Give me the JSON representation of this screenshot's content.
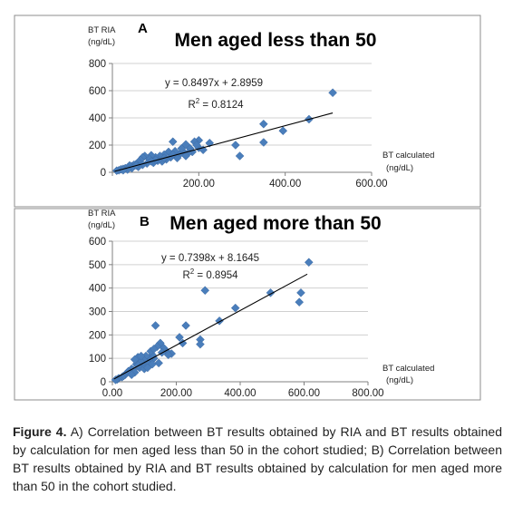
{
  "chart_data": [
    {
      "type": "scatter",
      "panel_letter": "A",
      "title": "Men aged less than 50",
      "ylabel_lines": [
        "BT RIA",
        "(ng/dL)"
      ],
      "xlabel_lines": [
        "BT calculated",
        "(ng/dL)"
      ],
      "xlim": [
        0,
        600
      ],
      "ylim": [
        0,
        800
      ],
      "xticks": [
        0,
        200,
        400,
        600
      ],
      "yticks": [
        0,
        200,
        400,
        600,
        800
      ],
      "xtick_labels": [
        "200.00",
        "400.00",
        "600.00"
      ],
      "ytick_labels": [
        "0",
        "200",
        "400",
        "600",
        "800"
      ],
      "grid": "horizontal",
      "marker_color": "#4a7ebb",
      "trendline": {
        "slope": 0.8497,
        "intercept": 2.8959,
        "x_range": [
          5,
          510
        ]
      },
      "equation": "y = 0.8497x + 2.8959",
      "r2_prefix": "R",
      "r2_sup": "2",
      "r2_value": " = 0.8124",
      "points": [
        [
          510,
          585
        ],
        [
          455,
          390
        ],
        [
          395,
          305
        ],
        [
          350,
          355
        ],
        [
          350,
          220
        ],
        [
          295,
          120
        ],
        [
          285,
          200
        ],
        [
          225,
          215
        ],
        [
          200,
          235
        ],
        [
          190,
          225
        ],
        [
          180,
          175
        ],
        [
          170,
          205
        ],
        [
          165,
          150
        ],
        [
          155,
          130
        ],
        [
          145,
          155
        ],
        [
          140,
          225
        ],
        [
          130,
          150
        ],
        [
          120,
          130
        ],
        [
          110,
          120
        ],
        [
          100,
          110
        ],
        [
          90,
          125
        ],
        [
          85,
          100
        ],
        [
          75,
          120
        ],
        [
          70,
          110
        ],
        [
          65,
          90
        ],
        [
          60,
          75
        ],
        [
          55,
          60
        ],
        [
          50,
          55
        ],
        [
          45,
          45
        ],
        [
          40,
          50
        ],
        [
          35,
          35
        ],
        [
          30,
          30
        ],
        [
          25,
          25
        ],
        [
          20,
          22
        ],
        [
          15,
          15
        ],
        [
          10,
          12
        ],
        [
          200,
          180
        ],
        [
          210,
          165
        ],
        [
          185,
          150
        ],
        [
          175,
          140
        ],
        [
          160,
          175
        ],
        [
          150,
          105
        ],
        [
          135,
          110
        ],
        [
          125,
          95
        ],
        [
          115,
          80
        ],
        [
          105,
          85
        ],
        [
          95,
          70
        ],
        [
          80,
          65
        ],
        [
          70,
          55
        ],
        [
          60,
          40
        ],
        [
          45,
          30
        ],
        [
          35,
          20
        ],
        [
          195,
          200
        ],
        [
          170,
          120
        ],
        [
          140,
          130
        ],
        [
          120,
          105
        ],
        [
          100,
          90
        ],
        [
          90,
          80
        ],
        [
          55,
          50
        ],
        [
          25,
          15
        ]
      ]
    },
    {
      "type": "scatter",
      "panel_letter": "B",
      "title": "Men aged more than 50",
      "ylabel_lines": [
        "BT RIA",
        "(ng/dL)"
      ],
      "xlabel_lines": [
        "BT calculated",
        "(ng/dL)"
      ],
      "xlim": [
        0,
        800
      ],
      "ylim": [
        0,
        600
      ],
      "xticks": [
        0,
        200,
        400,
        600,
        800
      ],
      "yticks": [
        0,
        100,
        200,
        300,
        400,
        500,
        600
      ],
      "xtick_labels": [
        "0.00",
        "200.00",
        "400.00",
        "600.00",
        "800.00"
      ],
      "ytick_labels": [
        "0",
        "100",
        "200",
        "300",
        "400",
        "500",
        "600"
      ],
      "grid": "horizontal",
      "marker_color": "#4a7ebb",
      "trendline": {
        "slope": 0.7398,
        "intercept": 8.1645,
        "x_range": [
          5,
          610
        ]
      },
      "equation": "y = 0.7398x + 8.1645",
      "r2_prefix": "R",
      "r2_sup": "2",
      "r2_value": " = 0.8954",
      "points": [
        [
          615,
          510
        ],
        [
          590,
          380
        ],
        [
          585,
          340
        ],
        [
          495,
          380
        ],
        [
          385,
          315
        ],
        [
          335,
          260
        ],
        [
          290,
          390
        ],
        [
          275,
          180
        ],
        [
          275,
          160
        ],
        [
          230,
          240
        ],
        [
          220,
          165
        ],
        [
          210,
          190
        ],
        [
          185,
          120
        ],
        [
          170,
          130
        ],
        [
          160,
          145
        ],
        [
          150,
          165
        ],
        [
          140,
          150
        ],
        [
          135,
          240
        ],
        [
          130,
          100
        ],
        [
          125,
          115
        ],
        [
          115,
          95
        ],
        [
          110,
          80
        ],
        [
          105,
          110
        ],
        [
          100,
          90
        ],
        [
          95,
          70
        ],
        [
          90,
          85
        ],
        [
          85,
          60
        ],
        [
          80,
          105
        ],
        [
          75,
          75
        ],
        [
          70,
          95
        ],
        [
          65,
          50
        ],
        [
          60,
          55
        ],
        [
          55,
          40
        ],
        [
          50,
          45
        ],
        [
          40,
          30
        ],
        [
          35,
          25
        ],
        [
          30,
          20
        ],
        [
          20,
          15
        ],
        [
          15,
          10
        ],
        [
          10,
          8
        ],
        [
          175,
          115
        ],
        [
          145,
          80
        ],
        [
          120,
          130
        ],
        [
          100,
          55
        ],
        [
          90,
          110
        ],
        [
          110,
          60
        ],
        [
          130,
          140
        ],
        [
          155,
          125
        ],
        [
          80,
          70
        ],
        [
          70,
          40
        ],
        [
          60,
          30
        ],
        [
          125,
          75
        ]
      ]
    }
  ],
  "caption": {
    "label": "Figure 4.",
    "text": " A) Correlation between BT results obtained by RIA and BT results obtained by calculation for men aged less than 50 in the cohort studied; B) Correlation between BT results obtained by RIA and BT results obtained by calculation for men aged more than 50 in the cohort studied."
  }
}
